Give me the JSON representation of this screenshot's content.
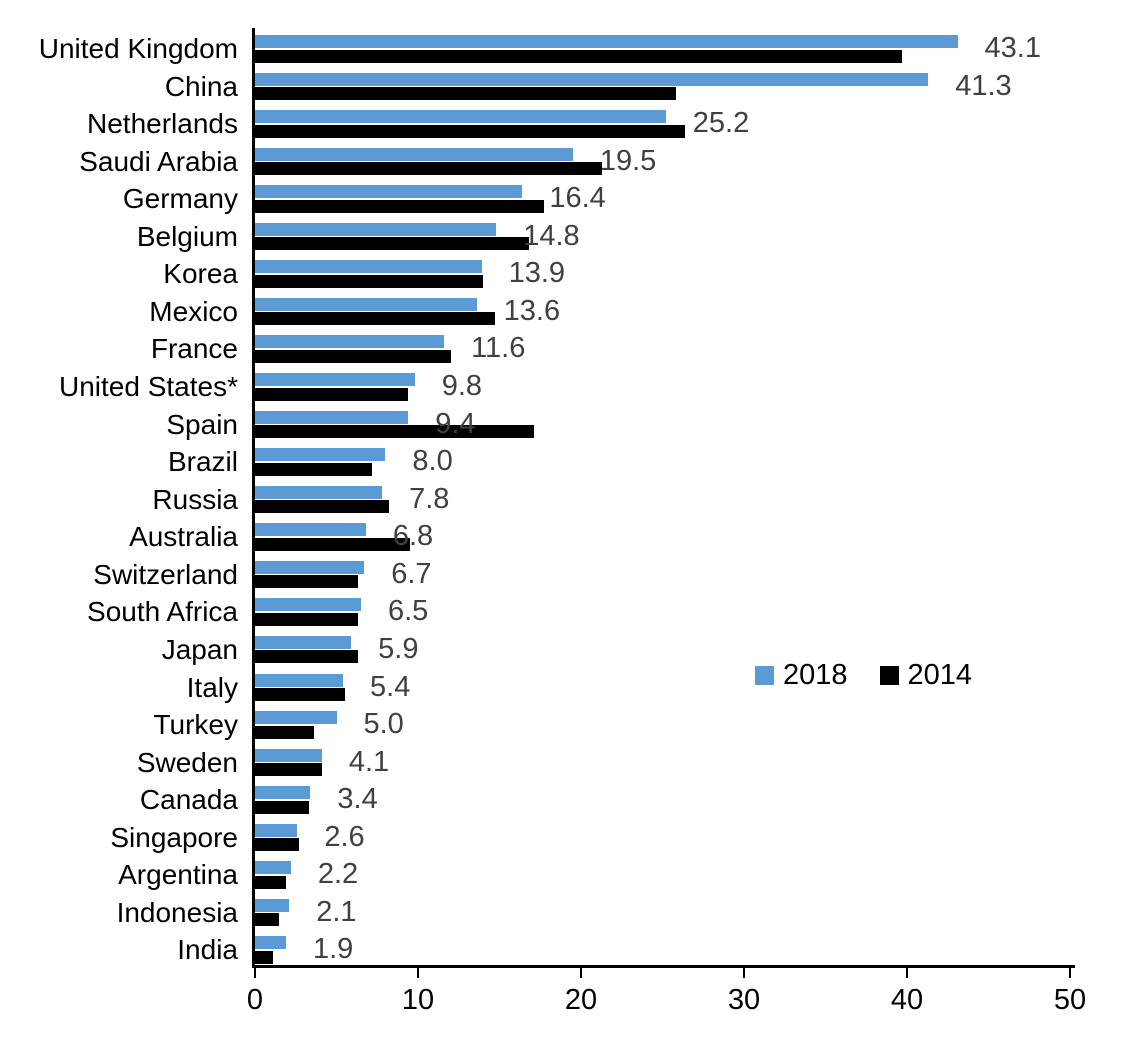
{
  "chart_data": {
    "type": "bar",
    "orientation": "horizontal",
    "title": "",
    "xlabel": "",
    "ylabel": "",
    "xlim": [
      0,
      50
    ],
    "x_ticks": [
      "0",
      "10",
      "20",
      "30",
      "40",
      "50"
    ],
    "grid": false,
    "categories": [
      "United Kingdom",
      "China",
      "Netherlands",
      "Saudi Arabia",
      "Germany",
      "Belgium",
      "Korea",
      "Mexico",
      "France",
      "United States*",
      "Spain",
      "Brazil",
      "Russia",
      "Australia",
      "Switzerland",
      "South Africa",
      "Japan",
      "Italy",
      "Turkey",
      "Sweden",
      "Canada",
      "Singapore",
      "Argentina",
      "Indonesia",
      "India"
    ],
    "series": [
      {
        "name": "2018",
        "color": "#5B9BD5",
        "values": [
          43.1,
          41.3,
          25.2,
          19.5,
          16.4,
          14.8,
          13.9,
          13.6,
          11.6,
          9.8,
          9.4,
          8.0,
          7.8,
          6.8,
          6.7,
          6.5,
          5.9,
          5.4,
          5.0,
          4.1,
          3.4,
          2.6,
          2.2,
          2.1,
          1.9
        ]
      },
      {
        "name": "2014",
        "color": "#000000",
        "values": [
          39.7,
          25.8,
          26.4,
          21.3,
          17.7,
          16.8,
          14.0,
          14.7,
          12.0,
          9.4,
          17.1,
          7.2,
          8.2,
          9.5,
          6.3,
          6.3,
          6.3,
          5.5,
          3.6,
          4.1,
          3.3,
          2.7,
          1.9,
          1.5,
          1.1
        ]
      }
    ],
    "data_labels": {
      "on_series": "2018",
      "color": "#404040",
      "values": [
        "43.1",
        "41.3",
        "25.2",
        "19.5",
        "16.4",
        "14.8",
        "13.9",
        "13.6",
        "11.6",
        "9.8",
        "9.4",
        "8.0",
        "7.8",
        "6.8",
        "6.7",
        "6.5",
        "5.9",
        "5.4",
        "5.0",
        "4.1",
        "3.4",
        "2.6",
        "2.2",
        "2.1",
        "1.9"
      ]
    },
    "legend": {
      "position": "inside-right",
      "entries": [
        "2018",
        "2014"
      ]
    }
  }
}
